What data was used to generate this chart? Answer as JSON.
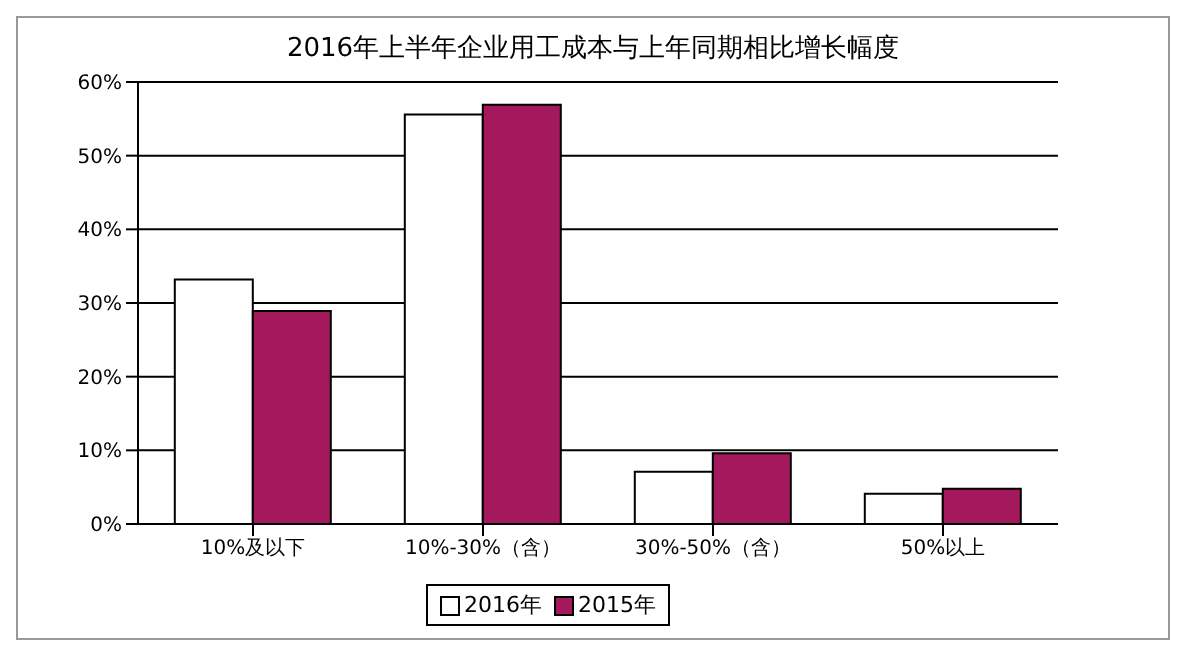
{
  "chart_data": {
    "type": "bar",
    "title": "2016年上半年企业用工成本与上年同期相比增长幅度",
    "categories": [
      "10%及以下",
      "10%-30%（含）",
      "30%-50%（含）",
      "50%以上"
    ],
    "series": [
      {
        "name": "2016年",
        "color": "#ffffff",
        "values": [
          33.2,
          55.6,
          7.1,
          4.1
        ]
      },
      {
        "name": "2015年",
        "color": "#a3195b",
        "values": [
          28.9,
          56.9,
          9.6,
          4.8
        ]
      }
    ],
    "ylim": [
      0,
      60
    ],
    "yticks": [
      {
        "value": 0,
        "label": "0%"
      },
      {
        "value": 10,
        "label": "10%"
      },
      {
        "value": 20,
        "label": "20%"
      },
      {
        "value": 30,
        "label": "30%"
      },
      {
        "value": 40,
        "label": "40%"
      },
      {
        "value": 50,
        "label": "50%"
      },
      {
        "value": 60,
        "label": "60%"
      }
    ],
    "grid": "y",
    "legend": "bottom"
  }
}
